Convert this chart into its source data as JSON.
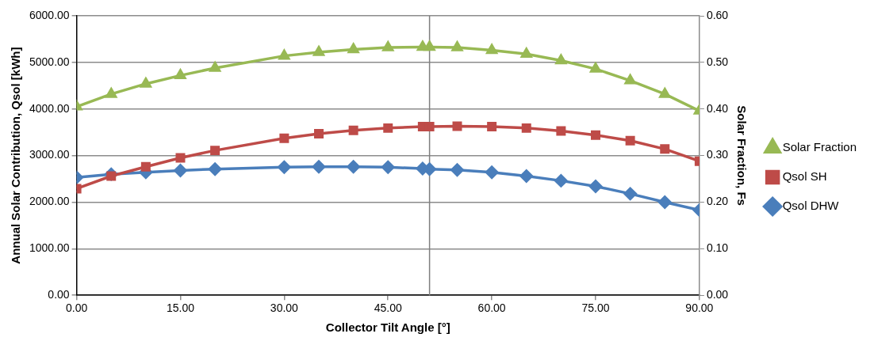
{
  "chart_data": {
    "type": "line",
    "xlabel": "Collector Tilt Angle [°]",
    "ylabel": "Annual Solar Contribution, Qsol [kWh]",
    "y2label": "Solar Fraction, Fs",
    "x": [
      0,
      5,
      10,
      15,
      20,
      30,
      35,
      40,
      45,
      50,
      51,
      55,
      60,
      65,
      70,
      75,
      80,
      85,
      90
    ],
    "series": [
      {
        "name": "Qsol DHW",
        "color": "#4a7ebb",
        "marker": "diamond",
        "values": [
          2530,
          2600,
          2640,
          2680,
          2710,
          2750,
          2760,
          2760,
          2750,
          2720,
          2710,
          2690,
          2640,
          2560,
          2460,
          2340,
          2180,
          2000,
          1830
        ]
      },
      {
        "name": "Qsol SH",
        "color": "#be4b48",
        "marker": "square",
        "values": [
          2290,
          2560,
          2760,
          2950,
          3110,
          3370,
          3470,
          3540,
          3590,
          3620,
          3620,
          3630,
          3620,
          3590,
          3530,
          3440,
          3320,
          3140,
          2880
        ]
      },
      {
        "name": "Solar Fraction",
        "color": "#98b954",
        "marker": "triangle",
        "axis": "y2",
        "values": [
          0.405,
          0.432,
          0.454,
          0.472,
          0.488,
          0.514,
          0.522,
          0.528,
          0.532,
          0.533,
          0.533,
          0.532,
          0.526,
          0.518,
          0.504,
          0.486,
          0.461,
          0.432,
          0.396
        ]
      }
    ],
    "xlim": [
      0,
      90
    ],
    "xticks": [
      {
        "value": 0,
        "label": "0.00"
      },
      {
        "value": 15,
        "label": "15.00"
      },
      {
        "value": 30,
        "label": "30.00"
      },
      {
        "value": 45,
        "label": "45.00"
      },
      {
        "value": 60,
        "label": "60.00"
      },
      {
        "value": 75,
        "label": "75.00"
      },
      {
        "value": 90,
        "label": "90.00"
      }
    ],
    "ylim": [
      0,
      6000
    ],
    "yticks": [
      {
        "value": 0,
        "label": "0.00"
      },
      {
        "value": 1000,
        "label": "1000.00"
      },
      {
        "value": 2000,
        "label": "2000.00"
      },
      {
        "value": 3000,
        "label": "3000.00"
      },
      {
        "value": 4000,
        "label": "4000.00"
      },
      {
        "value": 5000,
        "label": "5000.00"
      },
      {
        "value": 6000,
        "label": "6000.00"
      }
    ],
    "y2lim": [
      0,
      0.6
    ],
    "y2ticks": [
      {
        "value": 0,
        "label": "0.00"
      },
      {
        "value": 0.1,
        "label": "0.10"
      },
      {
        "value": 0.2,
        "label": "0.20"
      },
      {
        "value": 0.3,
        "label": "0.30"
      },
      {
        "value": 0.4,
        "label": "0.40"
      },
      {
        "value": 0.5,
        "label": "0.50"
      },
      {
        "value": 0.6,
        "label": "0.60"
      }
    ],
    "ref_lines": [
      {
        "axis": "x",
        "value": 51,
        "color": "#7f7f7f"
      }
    ],
    "grid": "y",
    "legend": "right",
    "line_style": "solid"
  }
}
